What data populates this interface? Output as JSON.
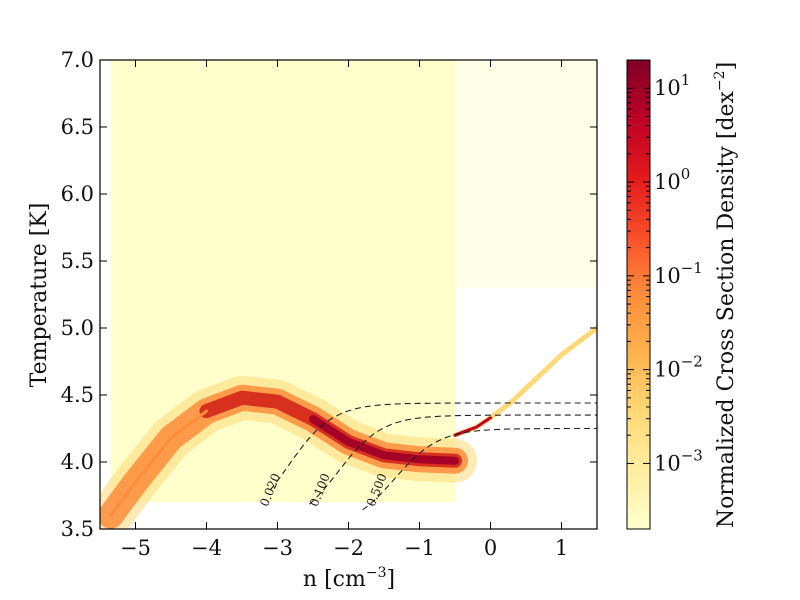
{
  "chart_data": {
    "type": "heatmap",
    "xlabel": "n [cm",
    "xlabel_sup": "−3",
    "xlabel_end": "]",
    "ylabel": "Temperature [K]",
    "xlim": [
      -5.5,
      1.5
    ],
    "ylim": [
      3.5,
      7.0
    ],
    "x_ticks": [
      -5,
      -4,
      -3,
      -2,
      -1,
      0,
      1
    ],
    "x_tick_labels": [
      "−5",
      "−4",
      "−3",
      "−2",
      "−1",
      "0",
      "1"
    ],
    "y_ticks": [
      3.5,
      4.0,
      4.5,
      5.0,
      5.5,
      6.0,
      6.5,
      7.0
    ],
    "y_tick_labels": [
      "3.5",
      "4.0",
      "4.5",
      "5.0",
      "5.5",
      "6.0",
      "6.5",
      "7.0"
    ],
    "colorbar": {
      "label": "Normalized Cross Section Density [dex",
      "label_sup": "−2",
      "label_end": "]",
      "scale": "log",
      "range": [
        0.0002,
        20
      ],
      "ticks": [
        0.001,
        0.01,
        0.1,
        1,
        10
      ],
      "tick_bases": [
        "10",
        "10",
        "10",
        "10",
        "10"
      ],
      "tick_exponents": [
        "−3",
        "−2",
        "−1",
        "0",
        "1"
      ],
      "colormap": [
        "#ffffcc",
        "#ffeda0",
        "#fed976",
        "#feb24c",
        "#fd8d3c",
        "#fc4e2a",
        "#e31a1c",
        "#bd0026",
        "#800026"
      ]
    },
    "density_ridge": [
      {
        "x": -5.35,
        "y": 3.6
      },
      {
        "x": -5.0,
        "y": 3.85
      },
      {
        "x": -4.5,
        "y": 4.18
      },
      {
        "x": -4.0,
        "y": 4.38
      },
      {
        "x": -3.5,
        "y": 4.48
      },
      {
        "x": -3.0,
        "y": 4.45
      },
      {
        "x": -2.5,
        "y": 4.32
      },
      {
        "x": -2.0,
        "y": 4.15
      },
      {
        "x": -1.5,
        "y": 4.05
      },
      {
        "x": -1.0,
        "y": 4.02
      },
      {
        "x": -0.5,
        "y": 4.01
      }
    ],
    "high_density_branch": [
      {
        "x": -0.5,
        "y": 4.2
      },
      {
        "x": -0.2,
        "y": 4.26
      },
      {
        "x": 0.0,
        "y": 4.33
      },
      {
        "x": 0.3,
        "y": 4.45
      },
      {
        "x": 0.7,
        "y": 4.65
      },
      {
        "x": 1.0,
        "y": 4.8
      },
      {
        "x": 1.5,
        "y": 5.0
      }
    ],
    "contours": [
      {
        "label": "0.020",
        "plateau": 4.44,
        "transition_x": -2.85,
        "low_x": -3.1
      },
      {
        "label": "0.100",
        "plateau": 4.35,
        "transition_x": -2.15,
        "low_x": -2.55
      },
      {
        "label": "0.500",
        "plateau": 4.25,
        "transition_x": -1.35,
        "low_x": -1.8
      }
    ]
  }
}
